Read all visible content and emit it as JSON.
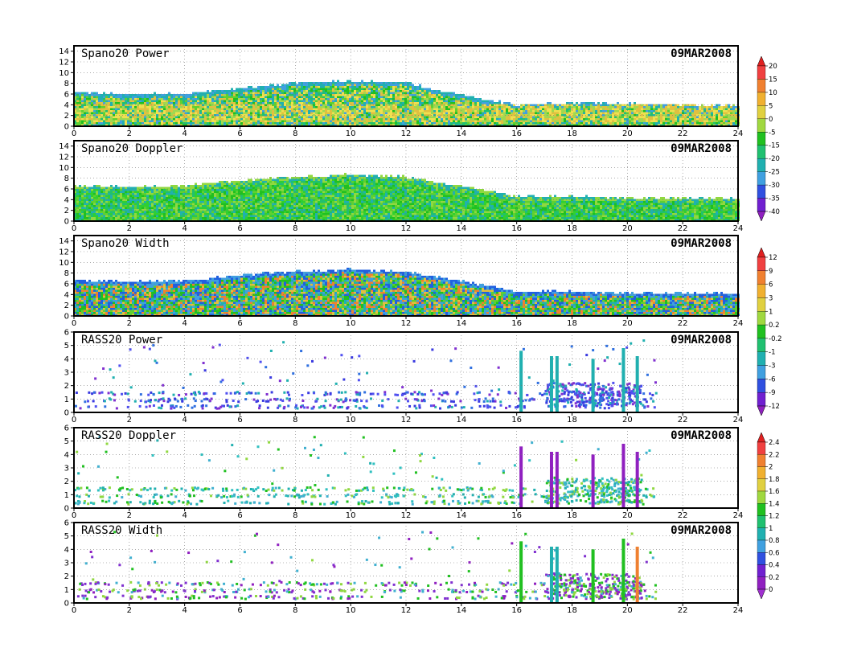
{
  "date_label": "09MAR2008",
  "chart_data": [
    {
      "type": "heatmap",
      "title": "Spano20 Power",
      "x": {
        "ticks": [
          0,
          2,
          4,
          6,
          8,
          10,
          12,
          14,
          16,
          18,
          20,
          22,
          24
        ],
        "range": [
          0,
          24
        ]
      },
      "y": {
        "ticks": [
          0,
          2,
          4,
          6,
          8,
          10,
          12,
          14
        ],
        "range": [
          0,
          15
        ]
      },
      "grid": true,
      "colorbar_id": "cb-power",
      "echo_top": [
        [
          0,
          6.6
        ],
        [
          2,
          6.2
        ],
        [
          4,
          6.3
        ],
        [
          6,
          7.3
        ],
        [
          8,
          8.3
        ],
        [
          10,
          8.6
        ],
        [
          12,
          8.4
        ],
        [
          13,
          7.0
        ],
        [
          15,
          5.0
        ],
        [
          16,
          4.2
        ],
        [
          18,
          4.6
        ],
        [
          20,
          4.4
        ],
        [
          24,
          4.0
        ]
      ],
      "core_band": [
        1.0,
        4.5
      ],
      "palette": [
        "#e0c040",
        "#f0e050",
        "#a0d850",
        "#60d030",
        "#20c020",
        "#20c070",
        "#20b0b0",
        "#40a0e0"
      ]
    },
    {
      "type": "heatmap",
      "title": "Spano20 Doppler",
      "x": {
        "ticks": [
          0,
          2,
          4,
          6,
          8,
          10,
          12,
          14,
          16,
          18,
          20,
          22,
          24
        ],
        "range": [
          0,
          24
        ]
      },
      "y": {
        "ticks": [
          0,
          2,
          4,
          6,
          8,
          10,
          12,
          14
        ],
        "range": [
          0,
          15
        ]
      },
      "grid": true,
      "echo_top": [
        [
          0,
          6.9
        ],
        [
          2,
          6.6
        ],
        [
          4,
          6.8
        ],
        [
          6,
          7.8
        ],
        [
          8,
          8.5
        ],
        [
          10,
          8.9
        ],
        [
          12,
          8.4
        ],
        [
          13,
          7.5
        ],
        [
          15,
          5.8
        ],
        [
          16,
          4.7
        ],
        [
          18,
          4.8
        ],
        [
          20,
          4.5
        ],
        [
          24,
          4.4
        ]
      ],
      "palette": [
        "#20c020",
        "#30d030",
        "#60d030",
        "#20c070",
        "#20b0b0",
        "#90d840"
      ]
    },
    {
      "type": "heatmap",
      "title": "Spano20 Width",
      "x": {
        "ticks": [
          0,
          2,
          4,
          6,
          8,
          10,
          12,
          14,
          16,
          18,
          20,
          22,
          24
        ],
        "range": [
          0,
          24
        ]
      },
      "y": {
        "ticks": [
          0,
          2,
          4,
          6,
          8,
          10,
          12,
          14
        ],
        "range": [
          0,
          15
        ]
      },
      "grid": true,
      "colorbar_id": "cb-width",
      "echo_top": [
        [
          0,
          6.9
        ],
        [
          2,
          6.6
        ],
        [
          4,
          6.8
        ],
        [
          6,
          7.8
        ],
        [
          8,
          8.5
        ],
        [
          10,
          8.9
        ],
        [
          12,
          8.4
        ],
        [
          13,
          7.5
        ],
        [
          15,
          5.8
        ],
        [
          16,
          4.7
        ],
        [
          18,
          4.8
        ],
        [
          20,
          4.5
        ],
        [
          24,
          4.4
        ]
      ],
      "palette": [
        "#20c020",
        "#60d030",
        "#e0c040",
        "#f08030",
        "#20b0b0",
        "#40a0e0",
        "#2060e0"
      ]
    },
    {
      "type": "scatter",
      "title": "RASS20 Power",
      "x": {
        "ticks": [
          0,
          2,
          4,
          6,
          8,
          10,
          12,
          14,
          16,
          18,
          20,
          22,
          24
        ],
        "range": [
          0,
          24
        ]
      },
      "y": {
        "ticks": [
          0,
          1,
          2,
          3,
          4,
          5,
          6
        ],
        "range": [
          0,
          6
        ]
      },
      "grid": true,
      "colorbar_id": "cb-rass",
      "base_heights": [
        0.5,
        1.0,
        1.5
      ],
      "palette": [
        "#3a3ae0",
        "#5050f0",
        "#8030d0",
        "#20b0b0",
        "#3070e0"
      ],
      "columns": [
        [
          16.1,
          4.6,
          "#20b0b0"
        ],
        [
          17.2,
          4.2,
          "#20b0b0"
        ],
        [
          17.4,
          4.2,
          "#20b0b0"
        ],
        [
          18.7,
          4.0,
          "#20b0b0"
        ],
        [
          19.8,
          4.8,
          "#20b0b0"
        ],
        [
          20.3,
          4.2,
          "#20b0b0"
        ]
      ]
    },
    {
      "type": "scatter",
      "title": "RASS20 Doppler",
      "x": {
        "ticks": [
          0,
          2,
          4,
          6,
          8,
          10,
          12,
          14,
          16,
          18,
          20,
          22,
          24
        ],
        "range": [
          0,
          24
        ]
      },
      "y": {
        "ticks": [
          0,
          1,
          2,
          3,
          4,
          5,
          6
        ],
        "range": [
          0,
          6
        ]
      },
      "grid": true,
      "colorbar_id": "cb-doppler",
      "base_heights": [
        0.5,
        1.0,
        1.5
      ],
      "palette": [
        "#20b0b0",
        "#30c0c0",
        "#40b0d0",
        "#90d840",
        "#20c020"
      ],
      "columns": [
        [
          16.1,
          4.6,
          "#9020c0"
        ],
        [
          17.2,
          4.2,
          "#9020c0"
        ],
        [
          17.4,
          4.2,
          "#9020c0"
        ],
        [
          18.7,
          4.0,
          "#9020c0"
        ],
        [
          19.8,
          4.8,
          "#9020c0"
        ],
        [
          20.3,
          4.2,
          "#9020c0"
        ]
      ]
    },
    {
      "type": "scatter",
      "title": "RASS20 Width",
      "x": {
        "ticks": [
          0,
          2,
          4,
          6,
          8,
          10,
          12,
          14,
          16,
          18,
          20,
          22,
          24
        ],
        "range": [
          0,
          24
        ]
      },
      "y": {
        "ticks": [
          0,
          1,
          2,
          3,
          4,
          5,
          6
        ],
        "range": [
          0,
          6
        ]
      },
      "grid": true,
      "colorbar_id": "cb-rwidth",
      "base_heights": [
        0.5,
        1.0,
        1.5
      ],
      "palette": [
        "#8030d0",
        "#9020c0",
        "#40b0d0",
        "#20c020",
        "#90d840"
      ],
      "columns": [
        [
          16.1,
          4.6,
          "#20c020"
        ],
        [
          17.2,
          4.2,
          "#20b0b0"
        ],
        [
          17.4,
          4.2,
          "#20b0b0"
        ],
        [
          18.7,
          4.0,
          "#20c020"
        ],
        [
          19.8,
          4.8,
          "#20c020"
        ],
        [
          20.3,
          4.2,
          "#f08030"
        ]
      ]
    }
  ],
  "colorbars": [
    {
      "id": "cb-power",
      "panels": [
        0,
        1
      ],
      "labels": [
        "20",
        "15",
        "10",
        "5",
        "0",
        "-5",
        "-15",
        "-20",
        "-25",
        "-30",
        "-35",
        "-40"
      ],
      "colors": [
        "#e02020",
        "#f04040",
        "#f08030",
        "#f0b030",
        "#e0d040",
        "#a0d840",
        "#20c020",
        "#20c070",
        "#20b0b0",
        "#40a0e0",
        "#3050e0",
        "#7020d0",
        "#9020c0"
      ]
    },
    {
      "id": "cb-width",
      "panels": [
        2,
        3
      ],
      "labels": [
        "12",
        "9",
        "6",
        "3",
        "1",
        "0.2",
        "-0.2",
        "-1",
        "-3",
        "-6",
        "-9",
        "-12"
      ],
      "colors": [
        "#e02020",
        "#f04040",
        "#f08030",
        "#f0b030",
        "#e0d040",
        "#a0d840",
        "#20c020",
        "#20c070",
        "#20b0b0",
        "#40a0e0",
        "#3050e0",
        "#7020d0",
        "#9020c0"
      ]
    },
    {
      "id": "cb-doppler",
      "panels": [
        4,
        5
      ],
      "labels": [
        "2.4",
        "2.2",
        "2",
        "1.8",
        "1.6",
        "1.4",
        "1.2",
        "1",
        "0.8",
        "0.6",
        "0.4",
        "0.2",
        "0"
      ],
      "colors": [
        "#e02020",
        "#f04040",
        "#f08030",
        "#f0b030",
        "#e0d040",
        "#a0d840",
        "#20c020",
        "#20c070",
        "#20b0b0",
        "#40a0e0",
        "#3050e0",
        "#7020d0",
        "#9020c0",
        "#a030d0"
      ]
    }
  ]
}
